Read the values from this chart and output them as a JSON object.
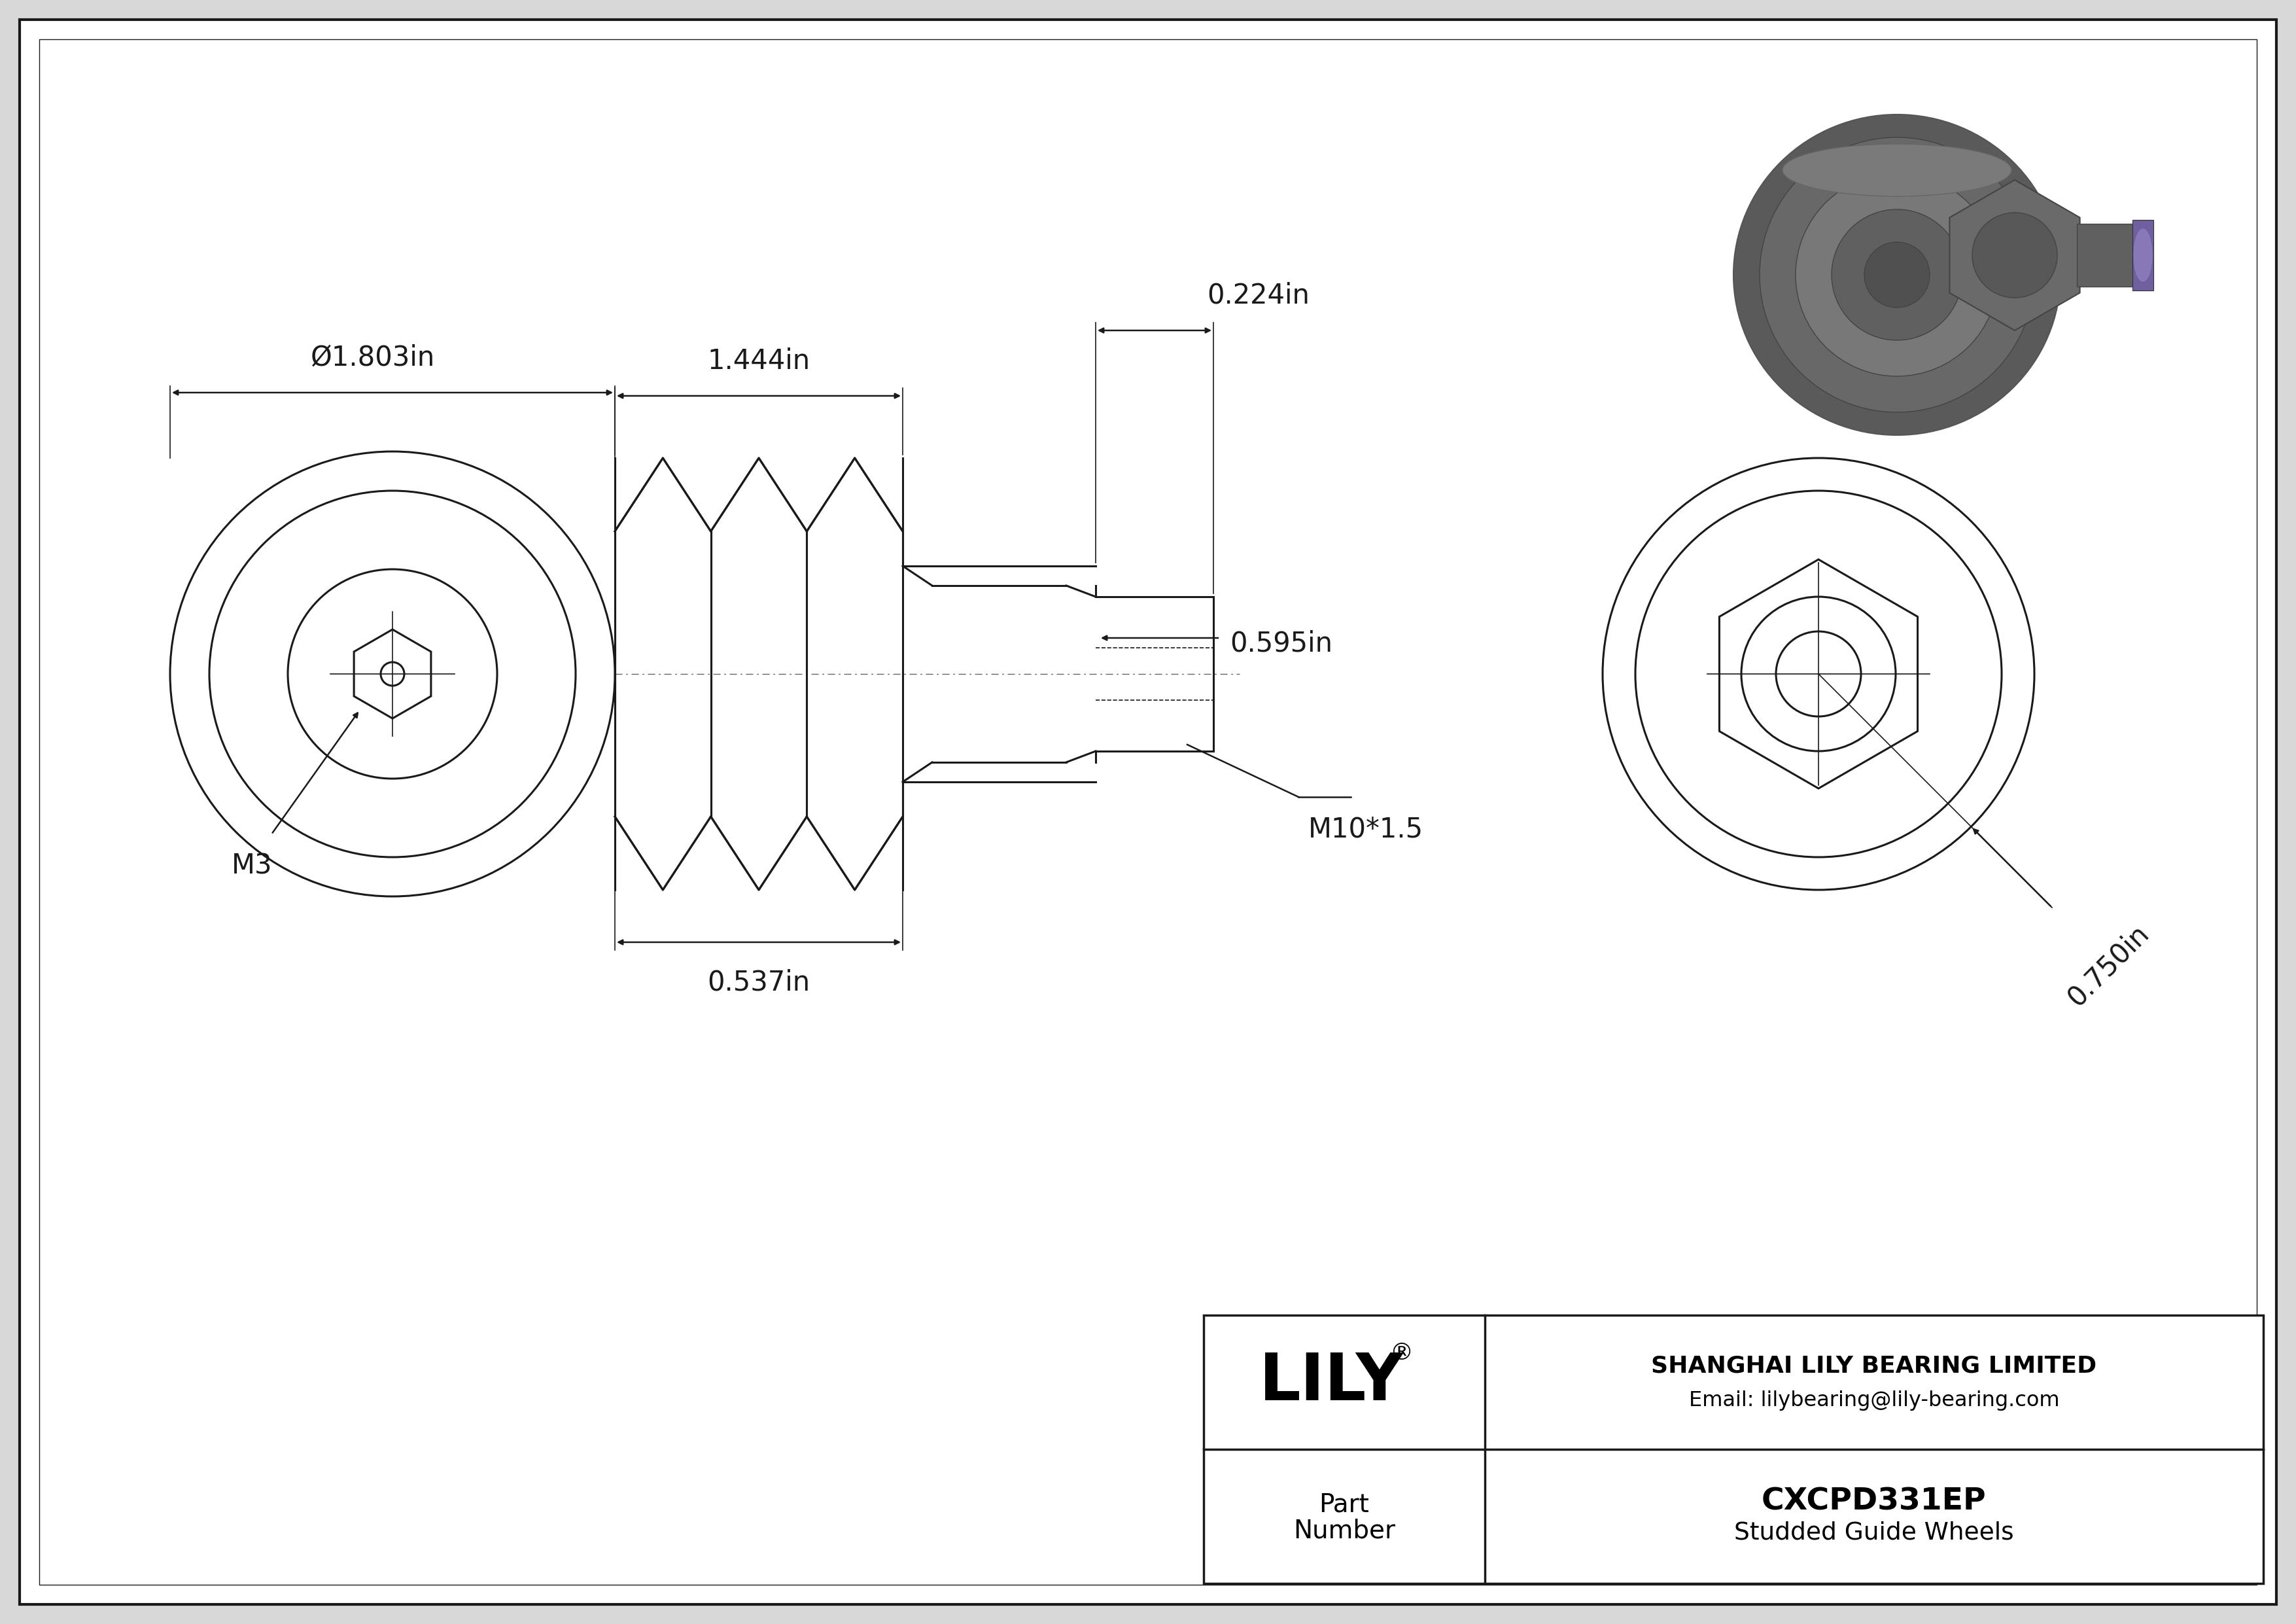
{
  "bg_color": "#d8d8d8",
  "paper_color": "#ffffff",
  "line_color": "#1a1a1a",
  "title_company": "SHANGHAI LILY BEARING LIMITED",
  "title_email": "Email: lilybearing@lily-bearing.com",
  "part_number": "CXCPD331EP",
  "part_desc": "Studded Guide Wheels",
  "brand": "LILY",
  "dim_diameter": "Ø1.803in",
  "dim_length": "1.444in",
  "dim_stub1": "0.224in",
  "dim_stub2": "0.595in",
  "dim_stub3": "0.537in",
  "dim_thread": "M10*1.5",
  "dim_hex": "M3",
  "dim_right": "0.750in"
}
